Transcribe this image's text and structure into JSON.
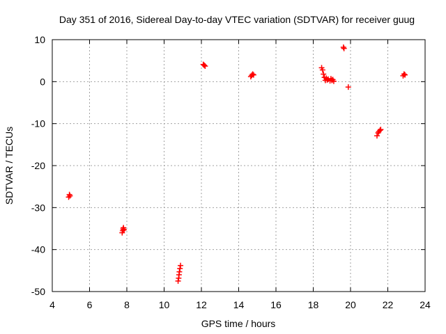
{
  "chart_data": {
    "type": "scatter",
    "title": "Day 351 of 2016, Sidereal Day-to-day VTEC variation (SDTVAR) for receiver guug",
    "xlabel": "GPS time / hours",
    "ylabel": "SDTVAR / TECUs",
    "xlim": [
      4,
      24
    ],
    "ylim": [
      -50,
      10
    ],
    "x_ticks": [
      "4",
      "6",
      "8",
      "10",
      "12",
      "14",
      "16",
      "18",
      "20",
      "22",
      "24"
    ],
    "y_ticks": [
      "10",
      "0",
      "-10",
      "-20",
      "-30",
      "-40",
      "-50"
    ],
    "grid": true,
    "marker": "plus",
    "color": "#ff0000",
    "series": [
      {
        "name": "SDTVAR",
        "points": [
          [
            4.88,
            -27.5
          ],
          [
            4.92,
            -26.9
          ],
          [
            4.95,
            -27.2
          ],
          [
            7.75,
            -36.0
          ],
          [
            7.78,
            -35.5
          ],
          [
            7.8,
            -35.1
          ],
          [
            7.82,
            -34.8
          ],
          [
            7.85,
            -35.3
          ],
          [
            10.75,
            -47.5
          ],
          [
            10.78,
            -46.8
          ],
          [
            10.8,
            -46.0
          ],
          [
            10.82,
            -45.3
          ],
          [
            10.85,
            -44.5
          ],
          [
            10.88,
            -43.8
          ],
          [
            12.1,
            4.1
          ],
          [
            12.15,
            3.9
          ],
          [
            12.2,
            3.7
          ],
          [
            14.65,
            1.2
          ],
          [
            14.7,
            1.5
          ],
          [
            14.75,
            1.8
          ],
          [
            14.8,
            1.6
          ],
          [
            18.45,
            3.3
          ],
          [
            18.5,
            2.8
          ],
          [
            18.55,
            1.8
          ],
          [
            18.6,
            1.0
          ],
          [
            18.65,
            0.3
          ],
          [
            18.7,
            0.8
          ],
          [
            18.75,
            0.4
          ],
          [
            18.8,
            0.6
          ],
          [
            18.9,
            0.2
          ],
          [
            18.95,
            0.7
          ],
          [
            19.0,
            0.3
          ],
          [
            19.05,
            0.5
          ],
          [
            19.1,
            0.1
          ],
          [
            19.62,
            8.2
          ],
          [
            19.65,
            7.9
          ],
          [
            19.88,
            -1.3
          ],
          [
            21.42,
            -12.9
          ],
          [
            21.48,
            -12.2
          ],
          [
            21.52,
            -11.9
          ],
          [
            21.58,
            -11.6
          ],
          [
            21.62,
            -11.4
          ],
          [
            22.82,
            1.4
          ],
          [
            22.87,
            1.8
          ],
          [
            22.92,
            1.6
          ]
        ]
      }
    ]
  }
}
